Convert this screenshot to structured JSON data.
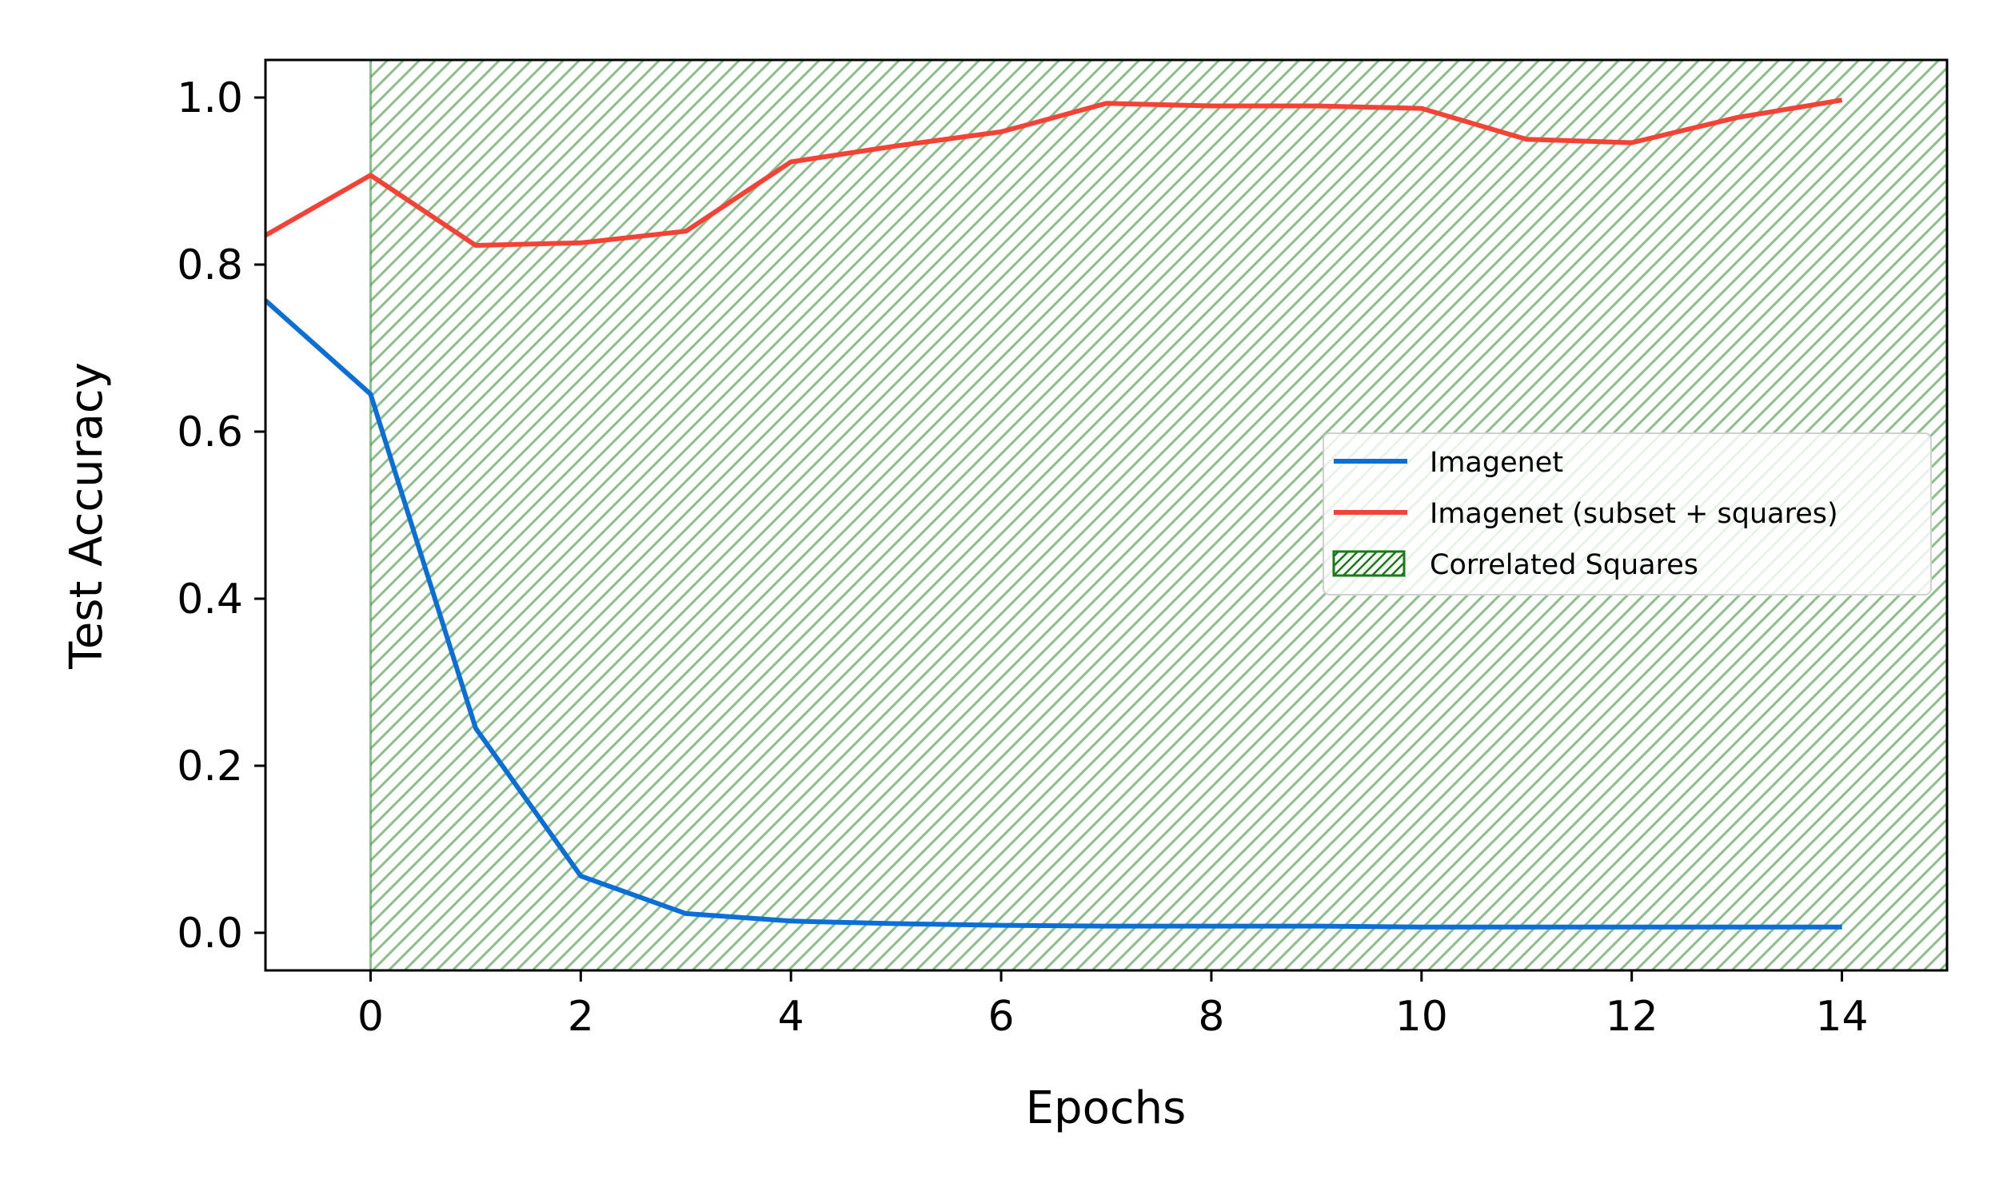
{
  "chart_data": {
    "type": "line",
    "title": "",
    "xlabel": "Epochs",
    "ylabel": "Test Accuracy",
    "xlim": [
      -1,
      15
    ],
    "ylim": [
      -0.045,
      1.045
    ],
    "x_ticks": [
      0,
      2,
      4,
      6,
      8,
      10,
      12,
      14
    ],
    "y_ticks": [
      0.0,
      0.2,
      0.4,
      0.6,
      0.8,
      1.0
    ],
    "x_tick_labels": [
      "0",
      "2",
      "4",
      "6",
      "8",
      "10",
      "12",
      "14"
    ],
    "y_tick_labels": [
      "0.0",
      "0.2",
      "0.4",
      "0.6",
      "0.8",
      "1.0"
    ],
    "grid": false,
    "legend_position": "center-right",
    "series": [
      {
        "name": "Imagenet",
        "color": "#0b6fd6",
        "x": [
          -1,
          0,
          1,
          2,
          3,
          4,
          5,
          6,
          7,
          8,
          9,
          10,
          11,
          12,
          13,
          14
        ],
        "values": [
          0.757,
          0.645,
          0.245,
          0.068,
          0.023,
          0.014,
          0.011,
          0.009,
          0.008,
          0.008,
          0.008,
          0.007,
          0.007,
          0.007,
          0.007,
          0.007
        ]
      },
      {
        "name": "Imagenet (subset + squares)",
        "color": "#f44336",
        "x": [
          -1,
          0,
          1,
          2,
          3,
          4,
          5,
          6,
          7,
          8,
          9,
          10,
          11,
          12,
          13,
          14
        ],
        "values": [
          0.835,
          0.907,
          0.823,
          0.826,
          0.84,
          0.923,
          0.942,
          0.959,
          0.993,
          0.99,
          0.99,
          0.987,
          0.95,
          0.946,
          0.976,
          0.997
        ]
      }
    ],
    "shaded_region": {
      "name": "Correlated Squares",
      "x_start": 0,
      "x_end": 15,
      "color": "#2e8b2e",
      "hatch": "diagonal"
    }
  }
}
